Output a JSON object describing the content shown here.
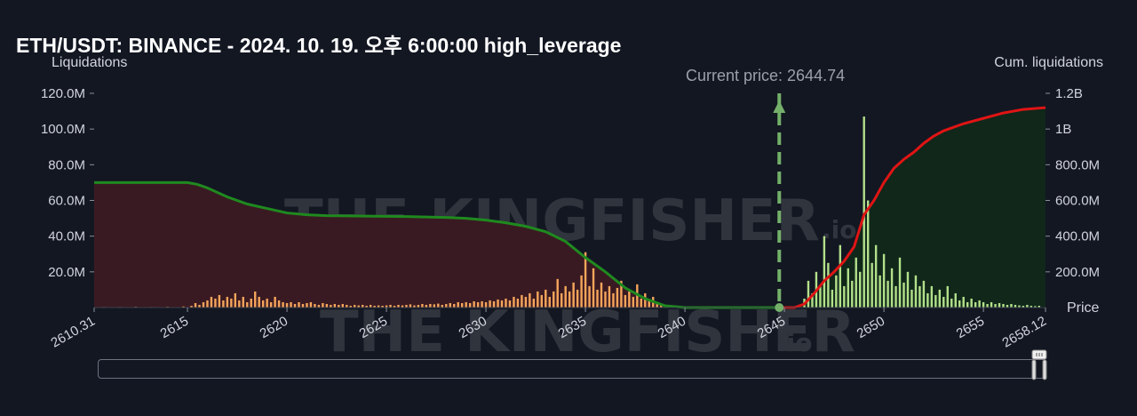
{
  "header": {
    "title": "ETH/USDT: BINANCE - 2024. 10. 19. 오후 6:00:00 high_leverage",
    "left_axis_title": "Liquidations",
    "right_axis_title": "Cum. liquidations",
    "x_axis_unit": "Price",
    "current_price_label": "Current price: 2644.74"
  },
  "watermark": {
    "text_main": "THE KINGFISHER",
    "text_suffix": ".io"
  },
  "colors": {
    "background": "#131722",
    "short_bars": "#f5a55b",
    "long_bars": "#b3e08a",
    "cum_short_line": "#1f8a1f",
    "cum_long_line": "#e01414",
    "short_fill": "#3a1a22",
    "long_fill": "#10271a",
    "current_price_line": "#74b06a"
  },
  "chart_data": {
    "type": "bar",
    "title": "ETH/USDT: BINANCE - 2024. 10. 19. 오후 6:00:00 high_leverage",
    "xlabel": "Price",
    "ylabel": "Liquidations",
    "y2label": "Cum. liquidations",
    "xlim": [
      2610.31,
      2658.12
    ],
    "ylim": [
      0,
      120000000
    ],
    "y2lim": [
      0,
      1200000000
    ],
    "x_ticks": [
      2610.31,
      2615,
      2620,
      2625,
      2630,
      2635,
      2640,
      2645,
      2650,
      2655,
      2658.12
    ],
    "x_tick_labels": [
      "2610.31",
      "2615",
      "2620",
      "2625",
      "2630",
      "2635",
      "2640",
      "2645",
      "2650",
      "2655",
      "2658.12"
    ],
    "y_ticks": [
      20000000,
      40000000,
      60000000,
      80000000,
      100000000,
      120000000
    ],
    "y_tick_labels": [
      "20.0M",
      "40.0M",
      "60.0M",
      "80.0M",
      "100.0M",
      "120.0M"
    ],
    "y2_ticks": [
      200000000,
      400000000,
      600000000,
      800000000,
      1000000000,
      1200000000
    ],
    "y2_tick_labels": [
      "200.0M",
      "400.0M",
      "600.0M",
      "800.0M",
      "1B",
      "1.2B"
    ],
    "current_price": 2644.74,
    "legend": "none",
    "grid": false,
    "series": [
      {
        "kind": "bar",
        "color": "#f5a55b",
        "points": [
          [
            2610.8,
            0.3
          ],
          [
            2611.6,
            0.3
          ],
          [
            2612.4,
            0.4
          ],
          [
            2613.2,
            0.3
          ],
          [
            2614.0,
            0.4
          ],
          [
            2614.8,
            0.6
          ],
          [
            2615.2,
            1.0
          ],
          [
            2615.4,
            2.5
          ],
          [
            2615.6,
            1.5
          ],
          [
            2615.8,
            3.0
          ],
          [
            2616.0,
            4.0
          ],
          [
            2616.2,
            6.0
          ],
          [
            2616.4,
            5.0
          ],
          [
            2616.6,
            7.0
          ],
          [
            2616.8,
            4.0
          ],
          [
            2617.0,
            6.0
          ],
          [
            2617.2,
            5.0
          ],
          [
            2617.4,
            8.0
          ],
          [
            2617.6,
            4.0
          ],
          [
            2617.8,
            6.0
          ],
          [
            2618.0,
            3.0
          ],
          [
            2618.2,
            5.0
          ],
          [
            2618.4,
            9.0
          ],
          [
            2618.6,
            6.0
          ],
          [
            2618.8,
            4.0
          ],
          [
            2619.0,
            5.0
          ],
          [
            2619.2,
            3.0
          ],
          [
            2619.4,
            6.0
          ],
          [
            2619.6,
            4.0
          ],
          [
            2619.8,
            3.0
          ],
          [
            2620.0,
            2.5
          ],
          [
            2620.2,
            3.0
          ],
          [
            2620.4,
            2.0
          ],
          [
            2620.6,
            3.0
          ],
          [
            2620.8,
            2.0
          ],
          [
            2621.0,
            2.5
          ],
          [
            2621.2,
            3.0
          ],
          [
            2621.4,
            2.0
          ],
          [
            2621.6,
            1.5
          ],
          [
            2621.8,
            2.5
          ],
          [
            2622.0,
            2.0
          ],
          [
            2622.2,
            1.5
          ],
          [
            2622.4,
            2.0
          ],
          [
            2622.6,
            1.5
          ],
          [
            2622.8,
            2.0
          ],
          [
            2623.0,
            1.5
          ],
          [
            2623.2,
            1.0
          ],
          [
            2623.4,
            1.5
          ],
          [
            2623.6,
            1.2
          ],
          [
            2623.8,
            1.5
          ],
          [
            2624.0,
            1.0
          ],
          [
            2624.2,
            1.5
          ],
          [
            2624.4,
            1.0
          ],
          [
            2624.6,
            1.2
          ],
          [
            2624.8,
            1.0
          ],
          [
            2625.0,
            1.2
          ],
          [
            2625.2,
            1.5
          ],
          [
            2625.4,
            1.0
          ],
          [
            2625.6,
            1.5
          ],
          [
            2625.8,
            1.2
          ],
          [
            2626.0,
            1.5
          ],
          [
            2626.2,
            1.8
          ],
          [
            2626.4,
            1.2
          ],
          [
            2626.6,
            1.5
          ],
          [
            2626.8,
            2.0
          ],
          [
            2627.0,
            1.5
          ],
          [
            2627.2,
            2.0
          ],
          [
            2627.4,
            1.8
          ],
          [
            2627.6,
            2.2
          ],
          [
            2627.8,
            1.5
          ],
          [
            2628.0,
            2.0
          ],
          [
            2628.2,
            2.5
          ],
          [
            2628.4,
            2.0
          ],
          [
            2628.6,
            3.0
          ],
          [
            2628.8,
            2.5
          ],
          [
            2629.0,
            3.0
          ],
          [
            2629.2,
            2.5
          ],
          [
            2629.4,
            3.5
          ],
          [
            2629.6,
            3.0
          ],
          [
            2629.8,
            3.5
          ],
          [
            2630.0,
            3.0
          ],
          [
            2630.2,
            4.0
          ],
          [
            2630.4,
            3.5
          ],
          [
            2630.6,
            4.5
          ],
          [
            2630.8,
            4.0
          ],
          [
            2631.0,
            5.0
          ],
          [
            2631.2,
            4.0
          ],
          [
            2631.4,
            6.0
          ],
          [
            2631.6,
            5.0
          ],
          [
            2631.8,
            7.0
          ],
          [
            2632.0,
            6.0
          ],
          [
            2632.2,
            8.0
          ],
          [
            2632.4,
            5.0
          ],
          [
            2632.6,
            9.0
          ],
          [
            2632.8,
            7.0
          ],
          [
            2633.0,
            10.0
          ],
          [
            2633.2,
            6.0
          ],
          [
            2633.4,
            9.0
          ],
          [
            2633.6,
            16.0
          ],
          [
            2633.8,
            8.0
          ],
          [
            2634.0,
            12.0
          ],
          [
            2634.2,
            9.0
          ],
          [
            2634.4,
            14.0
          ],
          [
            2634.6,
            10.0
          ],
          [
            2634.8,
            18.0
          ],
          [
            2635.0,
            31.0
          ],
          [
            2635.2,
            12.0
          ],
          [
            2635.4,
            22.0
          ],
          [
            2635.6,
            10.0
          ],
          [
            2635.8,
            14.0
          ],
          [
            2636.0,
            9.0
          ],
          [
            2636.2,
            12.0
          ],
          [
            2636.4,
            8.0
          ],
          [
            2636.6,
            11.0
          ],
          [
            2636.8,
            15.0
          ],
          [
            2637.0,
            7.0
          ],
          [
            2637.2,
            9.0
          ],
          [
            2637.4,
            6.0
          ],
          [
            2637.6,
            13.0
          ],
          [
            2637.8,
            5.0
          ],
          [
            2638.0,
            8.0
          ],
          [
            2638.2,
            4.0
          ],
          [
            2638.4,
            6.0
          ],
          [
            2638.6,
            3.0
          ],
          [
            2638.8,
            2.0
          ]
        ]
      },
      {
        "kind": "bar",
        "color": "#b3e08a",
        "points": [
          [
            2646.0,
            5.0
          ],
          [
            2646.2,
            15.0
          ],
          [
            2646.4,
            8.0
          ],
          [
            2646.6,
            20.0
          ],
          [
            2646.8,
            12.0
          ],
          [
            2647.0,
            40.0
          ],
          [
            2647.2,
            25.0
          ],
          [
            2647.4,
            10.0
          ],
          [
            2647.6,
            18.0
          ],
          [
            2647.8,
            35.0
          ],
          [
            2648.0,
            12.0
          ],
          [
            2648.2,
            22.0
          ],
          [
            2648.4,
            15.0
          ],
          [
            2648.6,
            28.0
          ],
          [
            2648.8,
            20.0
          ],
          [
            2649.0,
            107.0
          ],
          [
            2649.2,
            60.0
          ],
          [
            2649.4,
            25.0
          ],
          [
            2649.6,
            35.0
          ],
          [
            2649.8,
            18.0
          ],
          [
            2650.0,
            30.0
          ],
          [
            2650.2,
            15.0
          ],
          [
            2650.4,
            22.0
          ],
          [
            2650.6,
            12.0
          ],
          [
            2650.8,
            28.0
          ],
          [
            2651.0,
            14.0
          ],
          [
            2651.2,
            20.0
          ],
          [
            2651.4,
            10.0
          ],
          [
            2651.6,
            18.0
          ],
          [
            2651.8,
            12.0
          ],
          [
            2652.0,
            15.0
          ],
          [
            2652.2,
            8.0
          ],
          [
            2652.4,
            12.0
          ],
          [
            2652.6,
            7.0
          ],
          [
            2652.8,
            10.0
          ],
          [
            2653.0,
            6.0
          ],
          [
            2653.2,
            12.0
          ],
          [
            2653.4,
            5.0
          ],
          [
            2653.6,
            8.0
          ],
          [
            2653.8,
            4.0
          ],
          [
            2654.0,
            6.0
          ],
          [
            2654.2,
            3.0
          ],
          [
            2654.4,
            5.0
          ],
          [
            2654.6,
            3.0
          ],
          [
            2654.8,
            4.0
          ],
          [
            2655.0,
            3.0
          ],
          [
            2655.2,
            2.0
          ],
          [
            2655.4,
            3.0
          ],
          [
            2655.6,
            2.0
          ],
          [
            2655.8,
            2.5
          ],
          [
            2656.0,
            2.0
          ],
          [
            2656.2,
            1.5
          ],
          [
            2656.4,
            2.0
          ],
          [
            2656.6,
            1.5
          ],
          [
            2656.8,
            1.2
          ],
          [
            2657.0,
            1.0
          ],
          [
            2657.2,
            1.5
          ],
          [
            2657.4,
            1.0
          ],
          [
            2657.6,
            0.8
          ],
          [
            2657.8,
            1.0
          ]
        ]
      },
      {
        "kind": "line",
        "axis": "y2",
        "color": "#1f8a1f",
        "points": [
          [
            2610.31,
            700
          ],
          [
            2613.0,
            700
          ],
          [
            2615.0,
            700
          ],
          [
            2615.5,
            690
          ],
          [
            2616.0,
            670
          ],
          [
            2617.0,
            620
          ],
          [
            2618.0,
            580
          ],
          [
            2619.0,
            555
          ],
          [
            2620.0,
            530
          ],
          [
            2621.0,
            520
          ],
          [
            2622.0,
            515
          ],
          [
            2624.0,
            512
          ],
          [
            2626.0,
            510
          ],
          [
            2628.0,
            505
          ],
          [
            2629.0,
            500
          ],
          [
            2630.0,
            490
          ],
          [
            2631.0,
            475
          ],
          [
            2632.0,
            455
          ],
          [
            2633.0,
            425
          ],
          [
            2634.0,
            370
          ],
          [
            2635.0,
            280
          ],
          [
            2636.0,
            200
          ],
          [
            2637.0,
            110
          ],
          [
            2638.0,
            50
          ],
          [
            2639.0,
            10
          ],
          [
            2640.0,
            0
          ],
          [
            2644.74,
            0
          ]
        ]
      },
      {
        "kind": "line",
        "axis": "y2",
        "color": "#e01414",
        "points": [
          [
            2644.74,
            0
          ],
          [
            2645.5,
            0
          ],
          [
            2646.0,
            20
          ],
          [
            2646.5,
            80
          ],
          [
            2647.0,
            150
          ],
          [
            2647.5,
            200
          ],
          [
            2648.0,
            260
          ],
          [
            2648.5,
            340
          ],
          [
            2649.0,
            520
          ],
          [
            2649.5,
            600
          ],
          [
            2650.0,
            700
          ],
          [
            2650.5,
            780
          ],
          [
            2651.0,
            830
          ],
          [
            2651.5,
            870
          ],
          [
            2652.0,
            920
          ],
          [
            2652.5,
            960
          ],
          [
            2653.0,
            990
          ],
          [
            2654.0,
            1030
          ],
          [
            2655.0,
            1060
          ],
          [
            2656.0,
            1090
          ],
          [
            2657.0,
            1110
          ],
          [
            2658.12,
            1120
          ]
        ]
      }
    ]
  }
}
